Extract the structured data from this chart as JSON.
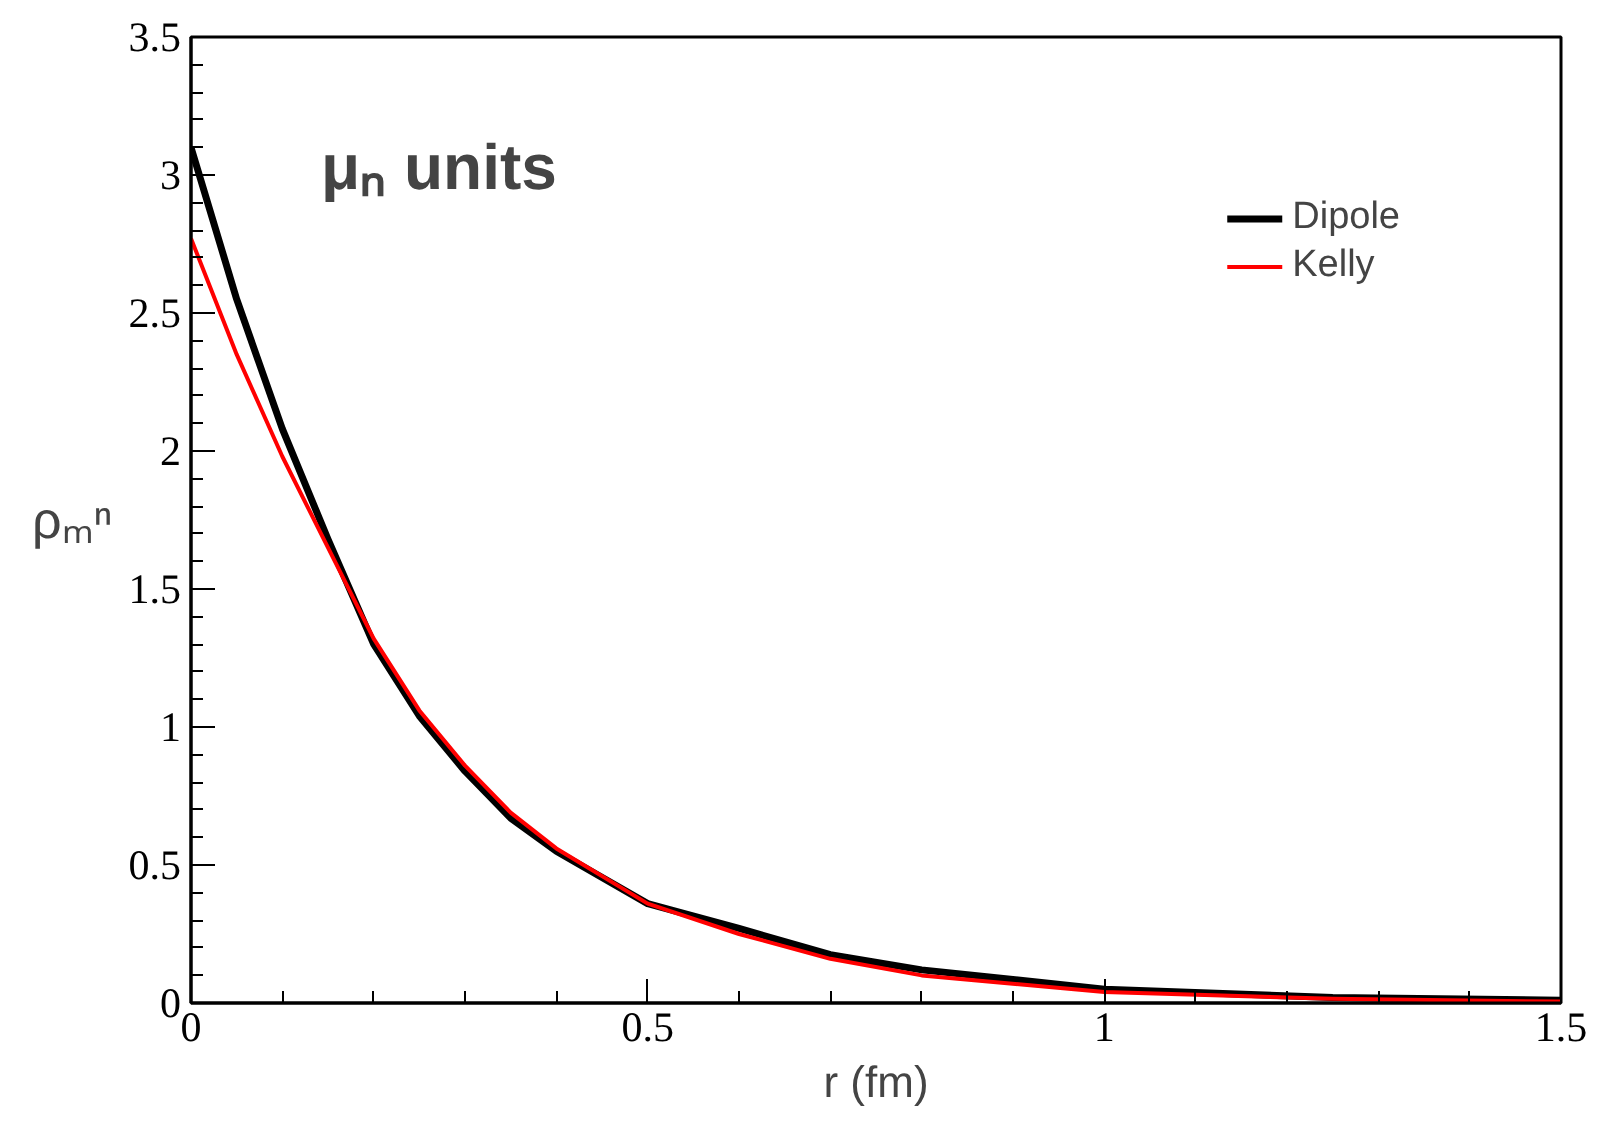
{
  "chart_data": {
    "type": "line",
    "xlabel": "r (fm)",
    "ylabel": "ρₘⁿ",
    "annotations": [
      "μₙ units"
    ],
    "xlim": [
      0,
      1.5
    ],
    "ylim": [
      0,
      3.5
    ],
    "xticks": [
      0,
      0.5,
      1,
      1.5
    ],
    "yticks": [
      0,
      0.5,
      1,
      1.5,
      2,
      2.5,
      3,
      3.5
    ],
    "grid": false,
    "legend": "top right",
    "line_style": "solid",
    "marker": "none",
    "series": [
      {
        "name": "Dipole",
        "color": "#000000",
        "x": [
          0,
          0.05,
          0.1,
          0.15,
          0.2,
          0.25,
          0.3,
          0.35,
          0.4,
          0.5,
          0.6,
          0.7,
          0.8,
          1.0,
          1.25,
          1.5
        ],
        "values": [
          3.1,
          2.55,
          2.08,
          1.68,
          1.3,
          1.04,
          0.84,
          0.67,
          0.55,
          0.36,
          0.27,
          0.175,
          0.12,
          0.05,
          0.02,
          0.01
        ]
      },
      {
        "name": "Kelly",
        "color": "#ff0000",
        "x": [
          0,
          0.05,
          0.1,
          0.15,
          0.2,
          0.25,
          0.3,
          0.35,
          0.4,
          0.5,
          0.6,
          0.7,
          0.8,
          1.0,
          1.25,
          1.5
        ],
        "values": [
          2.77,
          2.35,
          1.98,
          1.65,
          1.32,
          1.06,
          0.86,
          0.69,
          0.56,
          0.36,
          0.25,
          0.16,
          0.1,
          0.04,
          0.015,
          0.005
        ]
      }
    ]
  }
}
